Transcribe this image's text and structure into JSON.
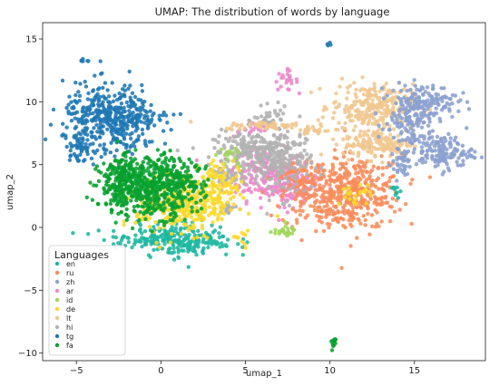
{
  "chart_data": {
    "type": "scatter",
    "title": "UMAP:  The distribution of words by language",
    "xlabel": "umap_1",
    "ylabel": "umap_2",
    "xlim": [
      -7,
      19.2
    ],
    "ylim": [
      -10.6,
      16.3
    ],
    "xticks": [
      -5,
      0,
      5,
      10,
      15
    ],
    "yticks": [
      -10,
      -5,
      0,
      5,
      10,
      15
    ],
    "grid": false,
    "legend": {
      "title": "Languages",
      "position": "lower-left"
    },
    "series": [
      {
        "name": "en",
        "color": "#1fb7a1",
        "clusters": [
          {
            "cx": 1.5,
            "cy": -1.0,
            "sx": 1.4,
            "sy": 0.7,
            "n": 180
          },
          {
            "cx": -0.5,
            "cy": -0.8,
            "sx": 1.6,
            "sy": 0.4,
            "n": 90
          },
          {
            "cx": 13.8,
            "cy": 2.9,
            "sx": 0.15,
            "sy": 0.3,
            "n": 10
          }
        ]
      },
      {
        "name": "ru",
        "color": "#f98c5b",
        "clusters": [
          {
            "cx": 11.5,
            "cy": 2.8,
            "sx": 1.4,
            "sy": 1.5,
            "n": 320
          },
          {
            "cx": 9.5,
            "cy": 2.5,
            "sx": 1.2,
            "sy": 1.3,
            "n": 160
          },
          {
            "cx": 8.2,
            "cy": 3.8,
            "sx": 0.5,
            "sy": 0.7,
            "n": 60
          }
        ]
      },
      {
        "name": "zh",
        "color": "#8ba1cf",
        "clusters": [
          {
            "cx": 15.5,
            "cy": 10.0,
            "sx": 1.0,
            "sy": 0.7,
            "n": 160
          },
          {
            "cx": 16.5,
            "cy": 6.0,
            "sx": 1.0,
            "sy": 0.7,
            "n": 150
          },
          {
            "cx": 14.5,
            "cy": 8.0,
            "sx": 0.8,
            "sy": 0.9,
            "n": 80
          },
          {
            "cx": 14.2,
            "cy": 5.0,
            "sx": 0.3,
            "sy": 0.6,
            "n": 30
          }
        ]
      },
      {
        "name": "ar",
        "color": "#ec8ac9",
        "clusters": [
          {
            "cx": 6.3,
            "cy": 4.2,
            "sx": 1.2,
            "sy": 1.0,
            "n": 200
          },
          {
            "cx": 7.8,
            "cy": 3.3,
            "sx": 0.8,
            "sy": 0.8,
            "n": 100
          },
          {
            "cx": 7.4,
            "cy": 11.7,
            "sx": 0.35,
            "sy": 0.4,
            "n": 25
          },
          {
            "cx": 5.5,
            "cy": 7.8,
            "sx": 0.6,
            "sy": 0.3,
            "n": 20
          }
        ]
      },
      {
        "name": "id",
        "color": "#a2d75a",
        "clusters": [
          {
            "cx": 7.2,
            "cy": -0.3,
            "sx": 0.4,
            "sy": 0.2,
            "n": 25
          },
          {
            "cx": 4.0,
            "cy": 5.5,
            "sx": 0.4,
            "sy": 0.4,
            "n": 15
          }
        ]
      },
      {
        "name": "de",
        "color": "#fbd92c",
        "clusters": [
          {
            "cx": 2.2,
            "cy": 2.0,
            "sx": 1.1,
            "sy": 1.2,
            "n": 220
          },
          {
            "cx": 0.3,
            "cy": 1.5,
            "sx": 0.9,
            "sy": 1.1,
            "n": 120
          },
          {
            "cx": 3.5,
            "cy": 3.5,
            "sx": 0.6,
            "sy": 1.0,
            "n": 60
          },
          {
            "cx": 11.5,
            "cy": 2.6,
            "sx": 0.5,
            "sy": 0.4,
            "n": 25
          },
          {
            "cx": 4.8,
            "cy": -0.6,
            "sx": 0.3,
            "sy": 0.3,
            "n": 10
          }
        ]
      },
      {
        "name": "lt",
        "color": "#f0c78f",
        "clusters": [
          {
            "cx": 12.5,
            "cy": 9.6,
            "sx": 1.2,
            "sy": 0.9,
            "n": 260
          },
          {
            "cx": 12.8,
            "cy": 6.7,
            "sx": 1.0,
            "sy": 0.6,
            "n": 150
          },
          {
            "cx": 6.5,
            "cy": 8.1,
            "sx": 1.4,
            "sy": 0.15,
            "n": 60
          },
          {
            "cx": 9.0,
            "cy": 7.7,
            "sx": 0.5,
            "sy": 0.12,
            "n": 25
          }
        ]
      },
      {
        "name": "hi",
        "color": "#b2b2b2",
        "clusters": [
          {
            "cx": 5.5,
            "cy": 6.0,
            "sx": 1.2,
            "sy": 0.8,
            "n": 220
          },
          {
            "cx": 7.3,
            "cy": 5.2,
            "sx": 0.8,
            "sy": 1.4,
            "n": 150
          },
          {
            "cx": 6.5,
            "cy": 8.5,
            "sx": 0.5,
            "sy": 0.5,
            "n": 40
          },
          {
            "cx": 3.8,
            "cy": 4.0,
            "sx": 0.6,
            "sy": 0.5,
            "n": 40
          },
          {
            "cx": 4.0,
            "cy": 1.5,
            "sx": 0.3,
            "sy": 0.3,
            "n": 20
          }
        ]
      },
      {
        "name": "tg",
        "color": "#1f78b4",
        "clusters": [
          {
            "cx": -3.0,
            "cy": 8.6,
            "sx": 1.4,
            "sy": 1.4,
            "n": 420
          },
          {
            "cx": -4.8,
            "cy": 6.3,
            "sx": 0.4,
            "sy": 0.4,
            "n": 40
          },
          {
            "cx": -1.2,
            "cy": 8.6,
            "sx": 1.0,
            "sy": 0.2,
            "n": 30
          },
          {
            "cx": -4.6,
            "cy": 13.3,
            "sx": 0.15,
            "sy": 0.1,
            "n": 6
          },
          {
            "cx": 10.0,
            "cy": 14.5,
            "sx": 0.1,
            "sy": 0.1,
            "n": 4
          }
        ]
      },
      {
        "name": "fa",
        "color": "#07a02e",
        "clusters": [
          {
            "cx": -0.8,
            "cy": 3.2,
            "sx": 1.4,
            "sy": 1.2,
            "n": 500
          },
          {
            "cx": -2.5,
            "cy": 4.0,
            "sx": 0.6,
            "sy": 0.9,
            "n": 90
          },
          {
            "cx": 1.0,
            "cy": 3.6,
            "sx": 0.8,
            "sy": 0.9,
            "n": 90
          },
          {
            "cx": 10.2,
            "cy": -9.2,
            "sx": 0.08,
            "sy": 0.35,
            "n": 12
          }
        ]
      }
    ]
  }
}
